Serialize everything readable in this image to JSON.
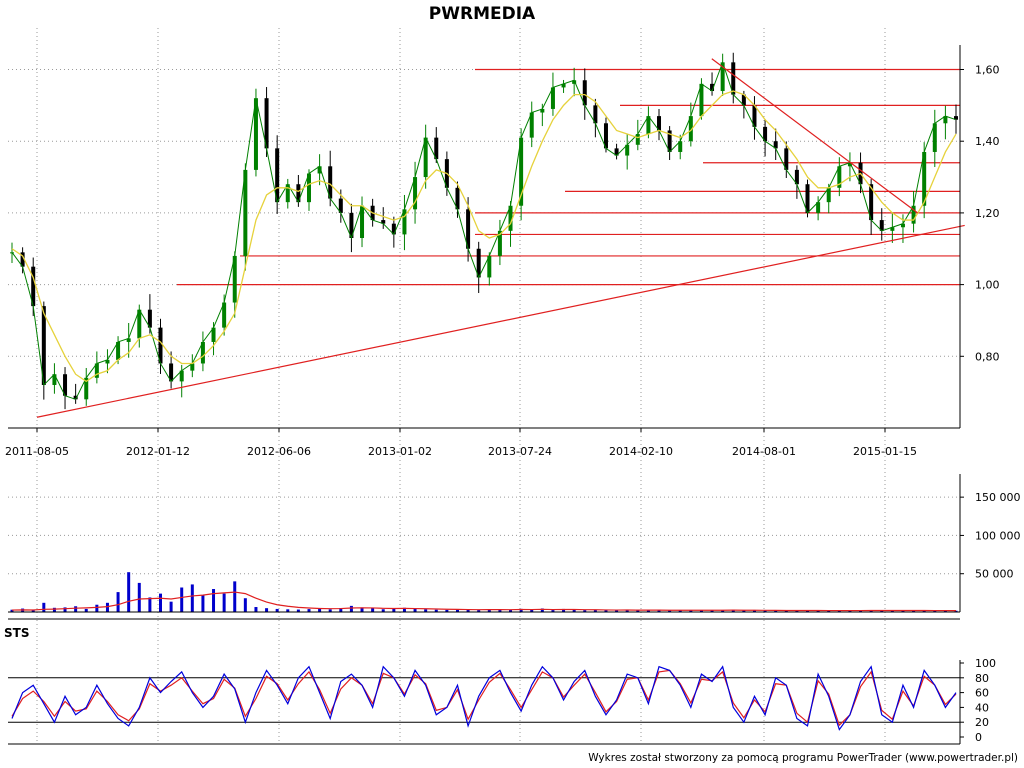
{
  "chart_data": [
    {
      "type": "candlestick",
      "title": "PWRMEDIA",
      "series": [
        {
          "name": "",
          "description": "close price",
          "values": [
            1.09,
            1.05,
            0.94,
            0.72,
            0.75,
            0.69,
            0.68,
            0.74,
            0.78,
            0.79,
            0.84,
            0.85,
            0.93,
            0.88,
            0.78,
            0.73,
            0.76,
            0.78,
            0.84,
            0.88,
            0.95,
            1.08,
            1.32,
            1.52,
            1.38,
            1.23,
            1.28,
            1.23,
            1.31,
            1.33,
            1.24,
            1.2,
            1.13,
            1.22,
            1.18,
            1.17,
            1.14,
            1.21,
            1.3,
            1.41,
            1.35,
            1.27,
            1.21,
            1.1,
            1.02,
            1.08,
            1.15,
            1.22,
            1.41,
            1.48,
            1.49,
            1.55,
            1.56,
            1.57,
            1.5,
            1.45,
            1.38,
            1.36,
            1.39,
            1.42,
            1.47,
            1.43,
            1.37,
            1.4,
            1.47,
            1.56,
            1.54,
            1.62,
            1.53,
            1.5,
            1.44,
            1.4,
            1.38,
            1.32,
            1.28,
            1.2,
            1.23,
            1.27,
            1.33,
            1.34,
            1.28,
            1.18,
            1.15,
            1.16,
            1.17,
            1.22,
            1.37,
            1.45,
            1.47,
            1.46
          ]
        },
        {
          "name": "",
          "description": "yellow moving average",
          "values": [
            1.1,
            1.08,
            1.02,
            0.92,
            0.86,
            0.8,
            0.75,
            0.73,
            0.75,
            0.76,
            0.79,
            0.81,
            0.85,
            0.86,
            0.84,
            0.8,
            0.78,
            0.78,
            0.8,
            0.83,
            0.87,
            0.92,
            1.05,
            1.18,
            1.25,
            1.27,
            1.27,
            1.26,
            1.28,
            1.29,
            1.28,
            1.25,
            1.22,
            1.22,
            1.2,
            1.19,
            1.18,
            1.19,
            1.23,
            1.29,
            1.32,
            1.31,
            1.28,
            1.22,
            1.15,
            1.13,
            1.14,
            1.17,
            1.25,
            1.33,
            1.4,
            1.46,
            1.5,
            1.53,
            1.53,
            1.51,
            1.47,
            1.43,
            1.42,
            1.41,
            1.42,
            1.43,
            1.42,
            1.41,
            1.43,
            1.47,
            1.5,
            1.53,
            1.54,
            1.53,
            1.5,
            1.46,
            1.43,
            1.39,
            1.35,
            1.3,
            1.27,
            1.27,
            1.28,
            1.3,
            1.31,
            1.27,
            1.23,
            1.2,
            1.18,
            1.18,
            1.23,
            1.3,
            1.37,
            1.42
          ]
        }
      ],
      "x_ticks": [
        "2011-08-05",
        "2012-01-12",
        "2012-06-06",
        "2013-01-02",
        "2013-07-24",
        "2014-02-10",
        "2014-08-01",
        "2015-01-15"
      ],
      "y_ticks": [
        "1,60",
        "1,40",
        "1,20",
        "1,00",
        "0,80"
      ],
      "ylim": [
        0.6,
        1.66
      ],
      "horizontal_levels": [
        1.6,
        1.5,
        1.34,
        1.26,
        1.2,
        1.14,
        1.08,
        1.0
      ],
      "trendlines": [
        {
          "from": [
            "2011-08-05",
            0.63
          ],
          "to": [
            "2015-05-05",
            1.165
          ]
        },
        {
          "from": [
            "2014-05-20",
            1.63
          ],
          "to": [
            "2015-03-01",
            1.2
          ]
        }
      ]
    },
    {
      "type": "bar",
      "description": "volume",
      "y_ticks": [
        "150 000",
        "100 000",
        "50 000"
      ],
      "ylim": [
        0,
        175000
      ],
      "values": [
        3000,
        4500,
        2500,
        12000,
        5500,
        6000,
        7500,
        4000,
        9500,
        12000,
        26000,
        52000,
        38000,
        19000,
        24000,
        13500,
        32000,
        36000,
        22000,
        30000,
        24000,
        40000,
        18000,
        6500,
        5000,
        4000,
        3500,
        3200,
        3800,
        4200,
        3500,
        5200,
        8000,
        6000,
        5000,
        3600,
        4500,
        5500,
        4200,
        3500,
        3000,
        2800,
        3200,
        2600,
        2500,
        3400,
        3300,
        2900,
        4100,
        3000,
        4600,
        2500,
        4000,
        3500,
        2400,
        2700,
        2200,
        2100,
        3100,
        2000,
        2700,
        2600,
        1900,
        2500,
        2200,
        2400,
        2100,
        2200,
        2900,
        2000,
        2200,
        1800,
        2000,
        1900,
        2100,
        1800,
        2100,
        1800,
        1900,
        2000,
        1700,
        2400,
        2300,
        1900,
        2200,
        2000,
        2100,
        1800,
        1900,
        1700
      ],
      "moving_average": [
        2500,
        2800,
        2600,
        3500,
        3800,
        4300,
        5000,
        5400,
        6000,
        7000,
        9500,
        14000,
        17000,
        17500,
        18000,
        17000,
        19000,
        21000,
        22000,
        24000,
        25000,
        26000,
        24000,
        18000,
        13000,
        9500,
        7500,
        6000,
        5200,
        4600,
        4300,
        4500,
        5200,
        5500,
        5300,
        4800,
        4600,
        4700,
        4500,
        4200,
        3900,
        3600,
        3400,
        3200,
        3000,
        3100,
        3100,
        3000,
        3300,
        3200,
        3500,
        3200,
        3300,
        3300,
        3000,
        2900,
        2700,
        2500,
        2600,
        2400,
        2400,
        2400,
        2300,
        2300,
        2300,
        2300,
        2300,
        2300,
        2400,
        2300,
        2300,
        2200,
        2100,
        2000,
        2000,
        2000,
        2000,
        1900,
        1900,
        1900,
        1900,
        2000,
        2000,
        2000,
        2000,
        2000,
        2000,
        1900,
        1900,
        1800
      ]
    },
    {
      "type": "line",
      "title": "STS",
      "y_ticks": [
        "100",
        "80",
        "60",
        "40",
        "20",
        "0"
      ],
      "ylim": [
        0,
        100
      ],
      "reference_levels": [
        80,
        20
      ],
      "series": [
        {
          "name": "",
          "description": "blue line",
          "values": [
            25,
            60,
            70,
            45,
            20,
            55,
            30,
            40,
            70,
            45,
            25,
            15,
            40,
            80,
            60,
            75,
            88,
            60,
            40,
            55,
            85,
            65,
            20,
            60,
            90,
            70,
            45,
            80,
            95,
            60,
            25,
            75,
            85,
            70,
            40,
            95,
            80,
            55,
            90,
            70,
            30,
            40,
            70,
            15,
            55,
            80,
            90,
            60,
            35,
            70,
            95,
            80,
            50,
            75,
            90,
            55,
            30,
            50,
            85,
            80,
            45,
            95,
            90,
            70,
            40,
            85,
            75,
            95,
            40,
            20,
            55,
            30,
            80,
            70,
            25,
            15,
            85,
            55,
            10,
            30,
            75,
            95,
            30,
            20,
            70,
            40,
            90,
            70,
            40,
            60
          ]
        },
        {
          "name": "",
          "description": "red line",
          "values": [
            28,
            52,
            62,
            48,
            28,
            48,
            35,
            38,
            62,
            48,
            30,
            22,
            38,
            72,
            62,
            70,
            80,
            62,
            45,
            52,
            78,
            66,
            28,
            52,
            82,
            72,
            50,
            72,
            88,
            64,
            32,
            65,
            80,
            70,
            45,
            86,
            80,
            58,
            84,
            72,
            36,
            40,
            64,
            24,
            50,
            74,
            86,
            64,
            40,
            64,
            88,
            80,
            54,
            70,
            85,
            60,
            34,
            48,
            78,
            80,
            50,
            88,
            90,
            72,
            46,
            78,
            76,
            88,
            46,
            26,
            50,
            34,
            72,
            70,
            32,
            20,
            76,
            58,
            16,
            30,
            68,
            88,
            36,
            24,
            62,
            42,
            82,
            70,
            44,
            58
          ]
        }
      ]
    }
  ],
  "footer": "Wykres został stworzony za pomocą programu PowerTrader (www.powertrader.pl)",
  "colors": {
    "up_candle": "#008000",
    "down_candle": "#000000",
    "moving_average_price": "#e6d23c",
    "levels": "#e02020",
    "volume_bars": "#0000cc",
    "volume_average": "#e02020",
    "sts_k": "#0000dd",
    "sts_d": "#e02020",
    "grid": "#9a9a9a"
  }
}
